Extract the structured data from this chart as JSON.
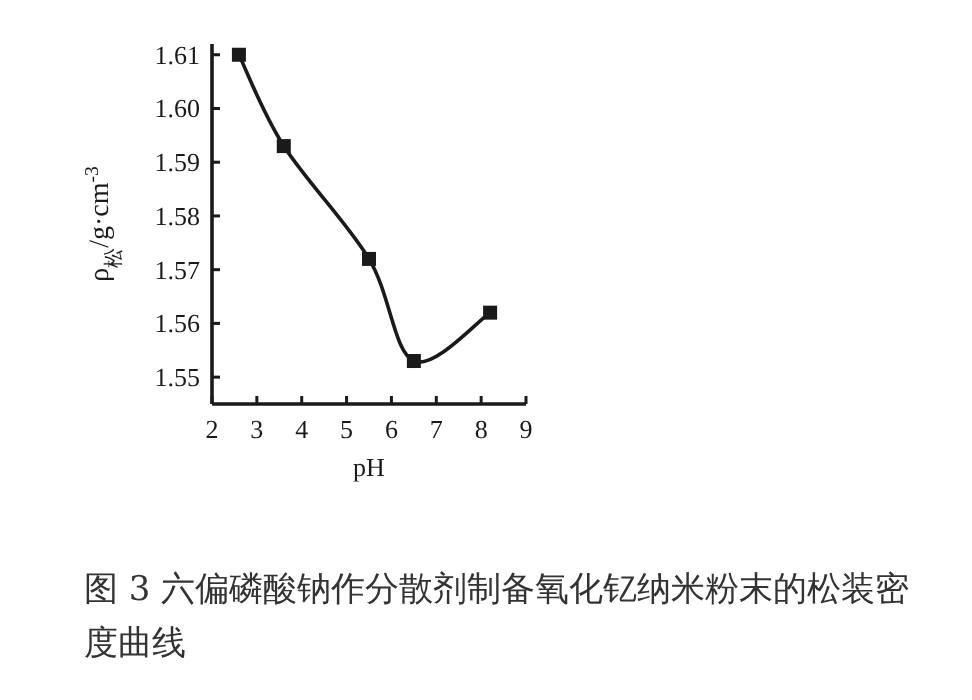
{
  "chart_data": {
    "type": "line",
    "title": "图 3  六偏磷酸钠作分散剂制备氧化钇纳米粉末的松装密度曲线",
    "xlabel": "pH",
    "ylabel": "ρ$_{松}$/g·cm$^{-3}$",
    "x": [
      2.6,
      3.6,
      5.5,
      6.5,
      8.2
    ],
    "values": [
      1.61,
      1.593,
      1.572,
      1.553,
      1.562
    ],
    "color": "#1a1a1a",
    "marker": "square",
    "line_style": "solid",
    "xlim": [
      2,
      9
    ],
    "ylim": [
      1.545,
      1.612
    ],
    "xticks": [
      2,
      3,
      4,
      5,
      6,
      7,
      8,
      9
    ],
    "yticks": [
      1.55,
      1.56,
      1.57,
      1.58,
      1.59,
      {
        "value": 1.6,
        "label": "1.60"
      },
      1.61
    ],
    "grid": false
  }
}
